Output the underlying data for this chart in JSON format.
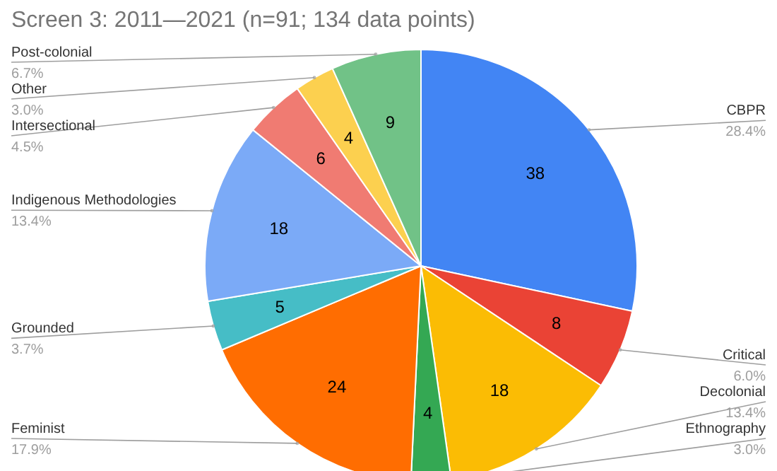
{
  "chart_data": {
    "type": "pie",
    "title": "Screen 3: 2011—2021 (n=91; 134 data points)",
    "categories": [
      "CBPR",
      "Critical",
      "Decolonial",
      "Ethnography",
      "Feminist",
      "Grounded",
      "Indigenous Methodologies",
      "Intersectional",
      "Other",
      "Post-colonial"
    ],
    "values": [
      38,
      8,
      18,
      4,
      24,
      5,
      18,
      6,
      4,
      9
    ],
    "colors": [
      "#4285f4",
      "#ea4335",
      "#fbbc04",
      "#34a853",
      "#ff6d01",
      "#46bdc6",
      "#7baaf7",
      "#f07b72",
      "#fcd04f",
      "#71c287"
    ],
    "annotations": [
      {
        "text": "28.4%",
        "x": "CBPR"
      },
      {
        "text": "6.0%",
        "x": "Critical"
      },
      {
        "text": "13.4%",
        "x": "Decolonial"
      },
      {
        "text": "3.0%",
        "x": "Ethnography"
      },
      {
        "text": "17.9%",
        "x": "Feminist"
      },
      {
        "text": "3.7%",
        "x": "Grounded"
      },
      {
        "text": "13.4%",
        "x": "Indigenous Methodologies"
      },
      {
        "text": "4.5%",
        "x": "Intersectional"
      },
      {
        "text": "3.0%",
        "x": "Other"
      },
      {
        "text": "6.7%",
        "x": "Post-colonial"
      }
    ],
    "data_labels": true,
    "legend": false
  }
}
